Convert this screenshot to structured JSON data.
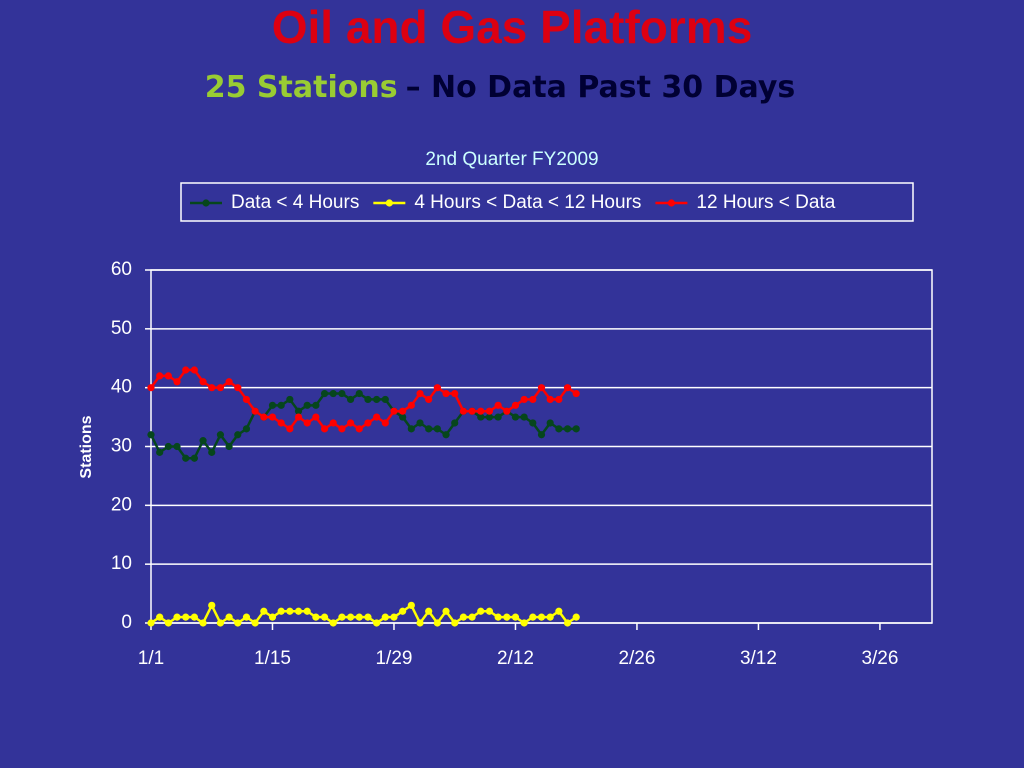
{
  "slide": {
    "title": "Oil and Gas Platforms",
    "subtitle_highlight": "25 Stations",
    "subtitle_rest": "– No Data Past 30 Days"
  },
  "chart_data": {
    "type": "line",
    "title": "2nd Quarter FY2009",
    "y_label": "Stations",
    "x": [
      0,
      1,
      2,
      3,
      4,
      5,
      6,
      7,
      8,
      9,
      10,
      11,
      12,
      13,
      14,
      15,
      16,
      17,
      18,
      19,
      20,
      21,
      22,
      23,
      24,
      25,
      26,
      27,
      28,
      29,
      30,
      31,
      32,
      33,
      34,
      35,
      36,
      37,
      38,
      39,
      40,
      41,
      42,
      43,
      44,
      45,
      46,
      47,
      48,
      49
    ],
    "xlim": [
      0,
      90
    ],
    "xticks": [
      {
        "value": 0,
        "label": "1/1"
      },
      {
        "value": 14,
        "label": "1/15"
      },
      {
        "value": 28,
        "label": "1/29"
      },
      {
        "value": 42,
        "label": "2/12"
      },
      {
        "value": 56,
        "label": "2/26"
      },
      {
        "value": 70,
        "label": "3/12"
      },
      {
        "value": 84,
        "label": "3/26"
      }
    ],
    "ylim": [
      0,
      60
    ],
    "yticks": [
      0,
      10,
      20,
      30,
      40,
      50,
      60
    ],
    "grid": true,
    "series": [
      {
        "name": "Data < 4 Hours",
        "color": "#06461c",
        "values": [
          32,
          29,
          30,
          30,
          28,
          28,
          31,
          29,
          32,
          30,
          32,
          33,
          36,
          35,
          37,
          37,
          38,
          36,
          37,
          37,
          39,
          39,
          39,
          38,
          39,
          38,
          38,
          38,
          36,
          35,
          33,
          34,
          33,
          33,
          32,
          34,
          36,
          36,
          35,
          35,
          35,
          36,
          35,
          35,
          34,
          32,
          34,
          33,
          33,
          33
        ]
      },
      {
        "name": "4 Hours < Data < 12 Hours",
        "color": "#ffff00",
        "values": [
          0,
          1,
          0,
          1,
          1,
          1,
          0,
          3,
          0,
          1,
          0,
          1,
          0,
          2,
          1,
          2,
          2,
          2,
          2,
          1,
          1,
          0,
          1,
          1,
          1,
          1,
          0,
          1,
          1,
          2,
          3,
          0,
          2,
          0,
          2,
          0,
          1,
          1,
          2,
          2,
          1,
          1,
          1,
          0,
          1,
          1,
          1,
          2,
          0,
          1
        ]
      },
      {
        "name": "12 Hours < Data",
        "color": "#ff0000",
        "values": [
          40,
          42,
          42,
          41,
          43,
          43,
          41,
          40,
          40,
          41,
          40,
          38,
          36,
          35,
          35,
          34,
          33,
          35,
          34,
          35,
          33,
          34,
          33,
          34,
          33,
          34,
          35,
          34,
          36,
          36,
          37,
          39,
          38,
          40,
          39,
          39,
          36,
          36,
          36,
          36,
          37,
          36,
          37,
          38,
          38,
          40,
          38,
          38,
          40,
          39
        ]
      }
    ]
  }
}
